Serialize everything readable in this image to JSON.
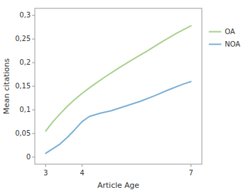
{
  "chart_data": {
    "type": "line",
    "xlabel": "Article Age",
    "ylabel": "Mean citations",
    "series": [
      {
        "name": "OA",
        "color": "#a8d08d",
        "x": [
          3,
          3.2,
          3.4,
          3.6,
          3.8,
          4.0,
          4.3,
          4.6,
          5.0,
          5.4,
          5.8,
          6.2,
          6.6,
          7.0
        ],
        "values": [
          0.055,
          0.075,
          0.092,
          0.108,
          0.122,
          0.135,
          0.152,
          0.168,
          0.188,
          0.207,
          0.225,
          0.244,
          0.262,
          0.278
        ]
      },
      {
        "name": "NOA",
        "color": "#7bafd4",
        "x": [
          3,
          3.2,
          3.4,
          3.6,
          3.8,
          4.0,
          4.2,
          4.5,
          4.8,
          5.2,
          5.6,
          6.0,
          6.4,
          6.8,
          7.0
        ],
        "values": [
          0.008,
          0.018,
          0.028,
          0.042,
          0.058,
          0.075,
          0.086,
          0.093,
          0.098,
          0.108,
          0.118,
          0.13,
          0.143,
          0.155,
          0.16
        ]
      }
    ],
    "xlim": [
      2.7,
      7.3
    ],
    "ylim": [
      -0.015,
      0.315
    ],
    "xticks": [
      3,
      4,
      7
    ],
    "yticks": [
      0,
      {
        "value": 0.05,
        "label": "0,05"
      },
      {
        "value": 0.1,
        "label": "0,1"
      },
      {
        "value": 0.15,
        "label": "0,15"
      },
      {
        "value": 0.2,
        "label": "0,2"
      },
      {
        "value": 0.25,
        "label": "0,25"
      },
      {
        "value": 0.3,
        "label": "0,3"
      }
    ],
    "grid": false,
    "legend": "right"
  }
}
